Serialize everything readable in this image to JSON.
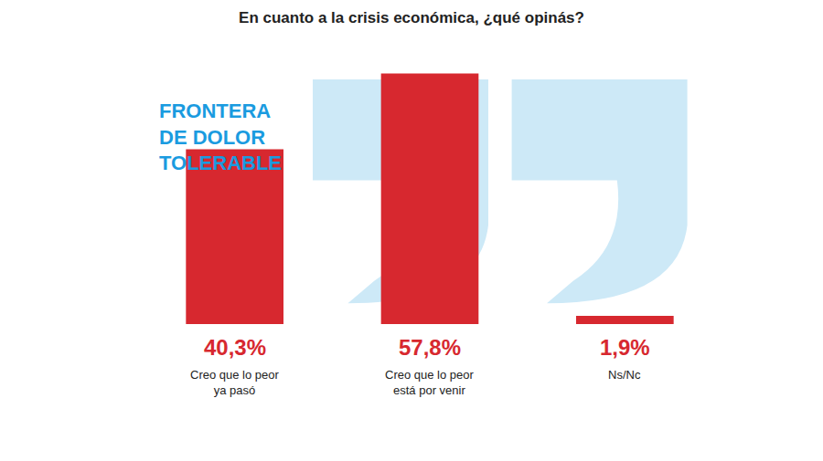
{
  "chart_data": {
    "type": "bar",
    "title": "En cuanto a la crisis económica, ¿qué opinás?",
    "subtitle": "FRONTERA DE DOLOR TOLERABLE",
    "categories": [
      "Creo que lo peor ya pasó",
      "Creo que lo peor está por venir",
      "Ns/Nc"
    ],
    "values": [
      40.3,
      57.8,
      1.9
    ],
    "value_labels": [
      "40,3%",
      "57,8%",
      "1,9%"
    ],
    "color": "#d7282f",
    "ylim": [
      0,
      60
    ],
    "grid": false,
    "data_labels": true,
    "tick_labels": false
  }
}
